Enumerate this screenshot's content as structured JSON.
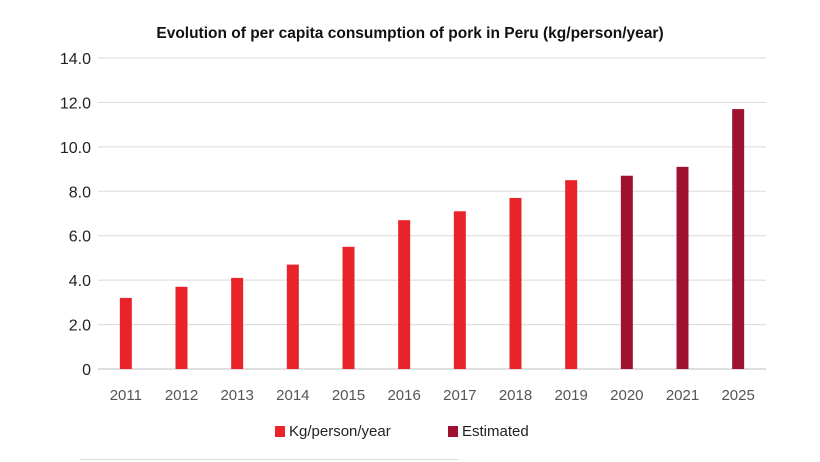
{
  "chart_data": {
    "type": "bar",
    "title": "Evolution of per capita consumption of pork in Peru (kg/person/year)",
    "xlabel": "",
    "ylabel": "",
    "categories": [
      "2011",
      "2012",
      "2013",
      "2014",
      "2015",
      "2016",
      "2017",
      "2018",
      "2019",
      "2020",
      "2021",
      "2025"
    ],
    "series": [
      {
        "name": "Kg/person/year",
        "color": "#e8242a",
        "values": [
          3.2,
          3.7,
          4.1,
          4.7,
          5.5,
          6.7,
          7.1,
          7.7,
          8.5,
          null,
          null,
          null
        ]
      },
      {
        "name": "Estimated",
        "color": "#9e1230",
        "values": [
          null,
          null,
          null,
          null,
          null,
          null,
          null,
          null,
          null,
          8.7,
          9.1,
          11.7
        ]
      }
    ],
    "ylim": [
      0,
      14
    ],
    "yticks": [
      0,
      2,
      4,
      6,
      8,
      10,
      12,
      14
    ],
    "ytick_labels": [
      "0",
      "2.0",
      "4.0",
      "6.0",
      "8.0",
      "10.0",
      "12.0",
      "14.0"
    ],
    "grid": true,
    "legend_position": "bottom"
  }
}
